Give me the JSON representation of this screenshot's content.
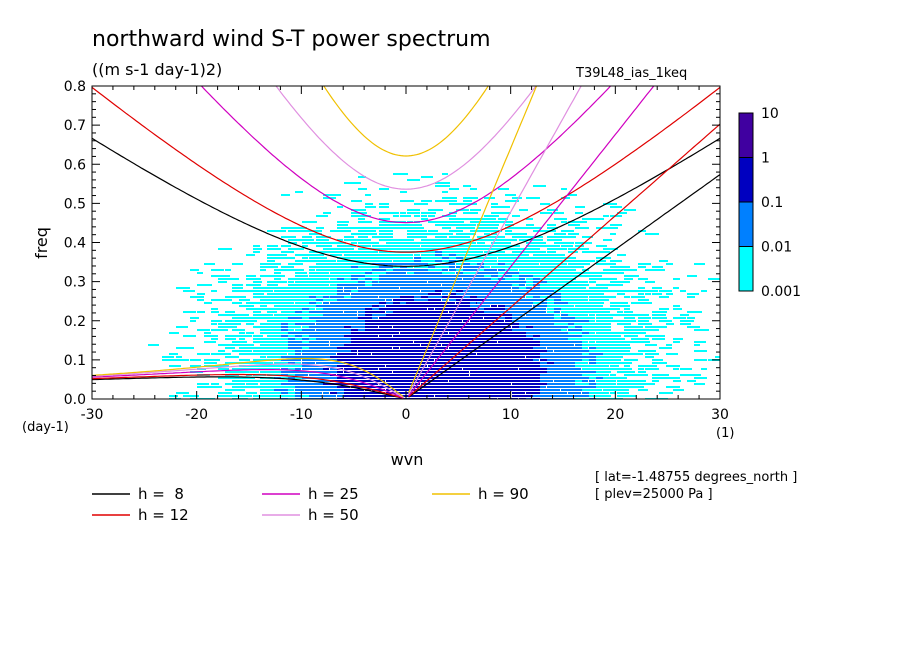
{
  "chart_data": {
    "type": "heatmap",
    "title": "northward wind S-T power spectrum",
    "subtitle": "((m s-1 day-1)2)",
    "run_label": "T39L48_ias_1keq",
    "xlabel": "wvn",
    "ylabel": "freq",
    "x_unit": "(1)",
    "y_unit": "(day-1)",
    "xlim": [
      -30,
      30
    ],
    "ylim": [
      0,
      0.8
    ],
    "x_ticks": [
      -30,
      -20,
      -10,
      0,
      10,
      20,
      30
    ],
    "y_ticks": [
      0.0,
      0.1,
      0.2,
      0.3,
      0.4,
      0.5,
      0.6,
      0.7,
      0.8
    ],
    "x_tick_labels": [
      "-30",
      "-20",
      "-10",
      "0",
      "10",
      "20",
      "30"
    ],
    "y_tick_labels": [
      "0.0",
      "0.1",
      "0.2",
      "0.3",
      "0.4",
      "0.5",
      "0.6",
      "0.7",
      "0.8"
    ],
    "colorbar": {
      "levels": [
        0.001,
        0.01,
        0.1,
        1,
        10
      ],
      "labels": [
        "10",
        "1",
        "0.1",
        "0.01",
        "0.001"
      ],
      "colors": [
        "#00ffff",
        "#0080ff",
        "#0000c0",
        "#4000a0"
      ]
    },
    "spectrum_peak": {
      "wvn": 3,
      "freq": 0.05
    },
    "dispersion_curves": [
      {
        "name": "h =  8",
        "h": 8,
        "color": "#000000"
      },
      {
        "name": "h = 12",
        "h": 12,
        "color": "#e00000"
      },
      {
        "name": "h = 25",
        "h": 25,
        "color": "#d000c0"
      },
      {
        "name": "h = 50",
        "h": 50,
        "color": "#e090e0"
      },
      {
        "name": "h = 90",
        "h": 90,
        "color": "#f0c000"
      }
    ],
    "info_lines": [
      "[ lat=-1.48755 degrees_north ]",
      "[ plev=25000 Pa ]"
    ]
  }
}
